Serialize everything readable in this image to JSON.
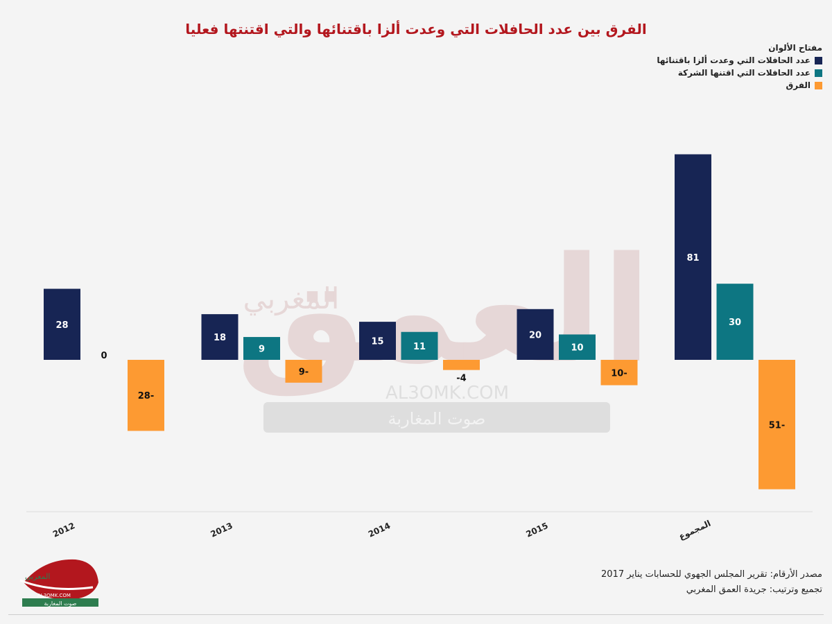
{
  "title": "الفرق بين عدد الحافلات التي وعدت ألزا باقتنائها والتي اقتنتها فعليا",
  "legend": {
    "title": "مفتاح الألوان",
    "items": [
      {
        "label": "عدد الحافلات التي وعدت ألزا باقتنائها",
        "color": "#172554"
      },
      {
        "label": "عدد الحافلات التي اقتنها الشركة",
        "color": "#0d7682"
      },
      {
        "label": "الفرق",
        "color": "#fd9a32"
      }
    ]
  },
  "chart_data": {
    "type": "bar",
    "categories": [
      "2012",
      "2013",
      "2014",
      "2015",
      "المجموع"
    ],
    "series": [
      {
        "name": "عدد الحافلات التي وعدت ألزا باقتنائها",
        "color": "#172554",
        "values": [
          28,
          18,
          15,
          20,
          81
        ],
        "labels": [
          "28",
          "18",
          "15",
          "20",
          "81"
        ]
      },
      {
        "name": "عدد الحافلات التي اقتنها الشركة",
        "color": "#0d7682",
        "values": [
          0,
          9,
          11,
          10,
          30
        ],
        "labels": [
          "0",
          "9",
          "11",
          "10",
          "30"
        ]
      },
      {
        "name": "الفرق",
        "color": "#fd9a32",
        "values": [
          -28,
          -9,
          -4,
          -10,
          -51
        ],
        "labels": [
          "28-",
          "9-",
          "-4",
          "10-",
          "51-"
        ]
      }
    ],
    "ylim": [
      -60,
      90
    ],
    "grid": false,
    "legend_position": "top-right"
  },
  "footer": {
    "source": "مصدر الأرقام: تقرير المجلس الجهوي للحسابات يناير 2017",
    "credit": "تجميع وترتيب: جريدة العمق المغربي"
  },
  "watermark": {
    "brand": "العمق",
    "subtitle": "المغربي",
    "url": "AL3OMK.COM",
    "tagline": "صوت المغاربة"
  }
}
